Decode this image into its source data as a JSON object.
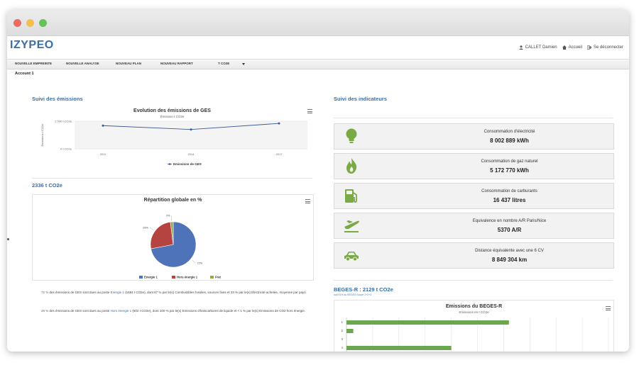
{
  "app": {
    "logo": "IZYPEO",
    "logo_tagline": "",
    "user_name": "CALLET Damien",
    "home_label": "Accueil",
    "logout_label": "Se déconnecter"
  },
  "nav": {
    "items": [
      "NOUVELLE EMPREINTE",
      "NOUVELLE ANALYSE",
      "NOUVEAU PLAN",
      "NOUVEAU RAPPORT",
      "T CO2E"
    ],
    "dropdown_icon": "caret-down-icon"
  },
  "account_label": "Account 1",
  "left": {
    "section1_title": "Suivi des émissions",
    "section2_title": "2336 t CO2e",
    "paragraph1": {
      "pct": "72 %",
      "text_a": " des émissions de GES sont dues au poste ",
      "poste": "Energie 1",
      "text_b": " (1684 t CO2e), dont 67 % par le(s) Combustibles fossiles, sources fixes et 33 % par le(s) Électricité achetée, moyenne par pays."
    },
    "paragraph2": {
      "pct": "26 %",
      "text_a": " des émissions de GES sont dues au poste ",
      "poste": "Hors énergie 1",
      "text_b": " (602 t CO2e), dont 100 % par le(s) Emissions d'halocarbures de liquide et < 1 % par le(s) Emissions de CO2 hors énergie."
    }
  },
  "right": {
    "section1_title": "Suivi des indicateurs",
    "indicators": [
      {
        "label": "Consommation d'électricité",
        "value": "8 002 889 kWh",
        "icon": "lightbulb-icon"
      },
      {
        "label": "Consommation de gaz naturel",
        "value": "5 172 770 kWh",
        "icon": "flame-icon"
      },
      {
        "label": "Consommation de carburants",
        "value": "16 437 litres",
        "icon": "fuel-pump-icon"
      },
      {
        "label": "Equivalence en nombre A/R Paris/Nice",
        "value": "5370 A/R",
        "icon": "airplane-icon"
      },
      {
        "label": "Distance équivalente avec une 6 CV",
        "value": "8 849 304 km",
        "icon": "car-icon"
      }
    ],
    "beges_title": "BEGES-R : 2129 t CO2e",
    "beges_subtitle": "soit 91% du BEGES Scope 1+2+3"
  },
  "chart_data": [
    {
      "type": "line",
      "title": "Evolution des émissions de GES",
      "subtitle": "Émission t CO2e",
      "ylabel": "Émissions t CO2e",
      "x": [
        "2011",
        "2014",
        "2017"
      ],
      "yticks": [
        "0 t CO2e",
        "2 500 t CO2e"
      ],
      "ylim": [
        0,
        2500
      ],
      "series": [
        {
          "name": "Emissions de GES",
          "values": [
            2100,
            1750,
            2300
          ]
        }
      ],
      "color": "#3d5a96",
      "legend": "bottom"
    },
    {
      "type": "pie",
      "title": "Répartition globale en %",
      "categories": [
        "Energie 1",
        "Hors énergie 1",
        "Fret"
      ],
      "values": [
        72,
        26,
        2
      ],
      "labels": [
        "72%",
        "26%",
        "2%"
      ],
      "colors": [
        "#4e73b8",
        "#b5433f",
        "#93a84f"
      ],
      "legend": "bottom"
    },
    {
      "type": "bar",
      "orientation": "horizontal",
      "title": "Emissions du BEGES-R",
      "subtitle": "Emissions en t CO2e",
      "categories": [
        "1",
        "2",
        "3",
        "4"
      ],
      "values": [
        1550,
        65,
        0,
        1000
      ],
      "xlim": [
        0,
        2500
      ],
      "color": "#6aa84f"
    }
  ]
}
